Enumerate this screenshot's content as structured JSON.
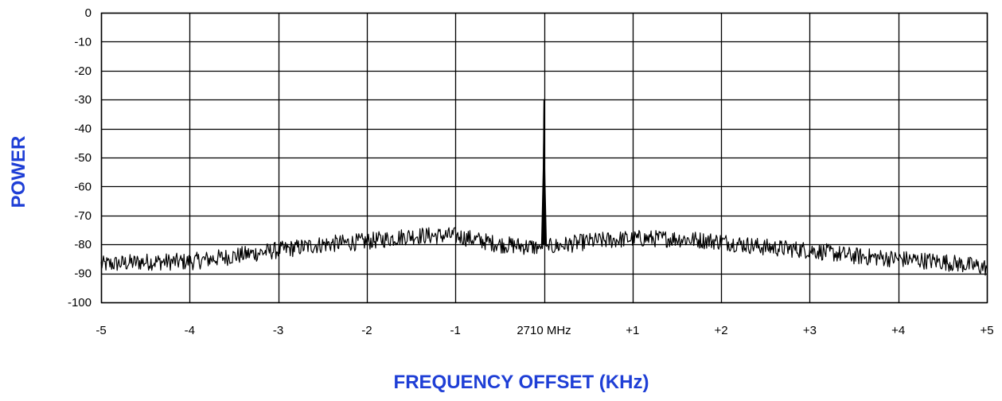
{
  "chart_data": {
    "type": "line",
    "title": "",
    "xlabel": "FREQUENCY OFFSET (KHz)",
    "ylabel": "POWER",
    "xlim": [
      -5,
      5
    ],
    "ylim": [
      -100,
      0
    ],
    "grid": true,
    "x_ticks": [
      {
        "value": -5,
        "label": "-5"
      },
      {
        "value": -4,
        "label": "-4"
      },
      {
        "value": -3,
        "label": "-3"
      },
      {
        "value": -2,
        "label": "-2"
      },
      {
        "value": -1,
        "label": "-1"
      },
      {
        "value": 0,
        "label": "2710 MHz"
      },
      {
        "value": 1,
        "label": "+1"
      },
      {
        "value": 2,
        "label": "+2"
      },
      {
        "value": 3,
        "label": "+3"
      },
      {
        "value": 4,
        "label": "+4"
      },
      {
        "value": 5,
        "label": "+5"
      }
    ],
    "y_ticks": [
      {
        "value": 0,
        "label": "0"
      },
      {
        "value": -10,
        "label": "-10"
      },
      {
        "value": -20,
        "label": "-20"
      },
      {
        "value": -30,
        "label": "-30"
      },
      {
        "value": -40,
        "label": "-40"
      },
      {
        "value": -50,
        "label": "-50"
      },
      {
        "value": -60,
        "label": "-60"
      },
      {
        "value": -70,
        "label": "-70"
      },
      {
        "value": -80,
        "label": "-80"
      },
      {
        "value": -90,
        "label": "-90"
      },
      {
        "value": -100,
        "label": "-100"
      }
    ],
    "series": [
      {
        "x": [
          -5.0,
          -4.5,
          -4.0,
          -3.5,
          -3.0,
          -2.5,
          -2.0,
          -1.5,
          -1.0,
          -0.5,
          -0.05,
          0.0,
          0.05,
          0.5,
          1.0,
          1.5,
          2.0,
          2.5,
          3.0,
          3.5,
          4.0,
          4.5,
          5.0
        ],
        "values": [
          -87,
          -86,
          -86,
          -84,
          -82,
          -80,
          -79,
          -77,
          -77,
          -80,
          -81,
          -30,
          -81,
          -79,
          -78,
          -78,
          -79,
          -81,
          -82,
          -84,
          -85,
          -86,
          -88
        ],
        "noise_amplitude": 3
      }
    ],
    "colors": {
      "axis_title": "#1f3fd6",
      "line": "#000000",
      "grid": "#000000"
    }
  }
}
